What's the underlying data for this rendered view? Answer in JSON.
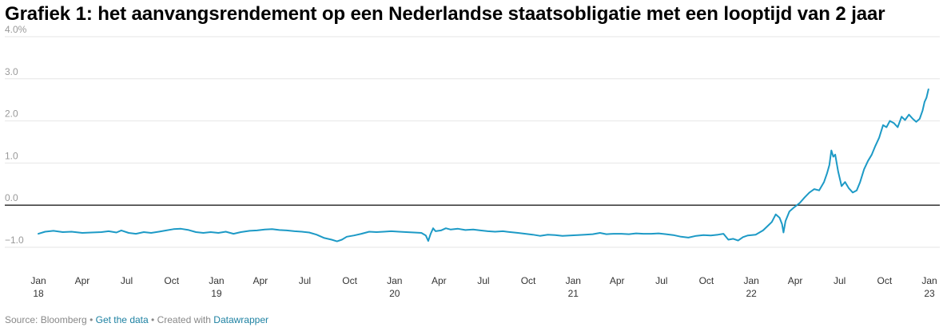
{
  "header": {
    "title": "Grafiek 1: het aanvangsrendement op een Nederlandse staatsobligatie met een looptijd van 2 jaar"
  },
  "footer": {
    "source": "Source: Bloomberg",
    "separator": "•",
    "get_data": "Get the data",
    "created_with": "Created with",
    "tool": "Datawrapper"
  },
  "colors": {
    "line": "#1d9ac6",
    "zero_line": "#333333",
    "grid": "#e6e6e6",
    "tick_text": "#999999"
  },
  "chart_data": {
    "type": "line",
    "title": "Grafiek 1: het aanvangsrendement op een Nederlandse staatsobligatie met een looptijd van 2 jaar",
    "xlabel": "",
    "ylabel": "",
    "ylim": [
      -1.0,
      4.0
    ],
    "y_ticks": [
      {
        "value": 4.0,
        "label": "4.0%"
      },
      {
        "value": 3.0,
        "label": "3.0"
      },
      {
        "value": 2.0,
        "label": "2.0"
      },
      {
        "value": 1.0,
        "label": "1.0"
      },
      {
        "value": 0.0,
        "label": "0.0"
      },
      {
        "value": -1.0,
        "label": "−1.0"
      }
    ],
    "x_range": [
      "2018-01-01",
      "2023-01-01"
    ],
    "x_ticks": [
      {
        "date": "2018-01-01",
        "label": "Jan",
        "sublabel": "18"
      },
      {
        "date": "2018-04-01",
        "label": "Apr",
        "sublabel": ""
      },
      {
        "date": "2018-07-01",
        "label": "Jul",
        "sublabel": ""
      },
      {
        "date": "2018-10-01",
        "label": "Oct",
        "sublabel": ""
      },
      {
        "date": "2019-01-01",
        "label": "Jan",
        "sublabel": "19"
      },
      {
        "date": "2019-04-01",
        "label": "Apr",
        "sublabel": ""
      },
      {
        "date": "2019-07-01",
        "label": "Jul",
        "sublabel": ""
      },
      {
        "date": "2019-10-01",
        "label": "Oct",
        "sublabel": ""
      },
      {
        "date": "2020-01-01",
        "label": "Jan",
        "sublabel": "20"
      },
      {
        "date": "2020-04-01",
        "label": "Apr",
        "sublabel": ""
      },
      {
        "date": "2020-07-01",
        "label": "Jul",
        "sublabel": ""
      },
      {
        "date": "2020-10-01",
        "label": "Oct",
        "sublabel": ""
      },
      {
        "date": "2021-01-01",
        "label": "Jan",
        "sublabel": "21"
      },
      {
        "date": "2021-04-01",
        "label": "Apr",
        "sublabel": ""
      },
      {
        "date": "2021-07-01",
        "label": "Jul",
        "sublabel": ""
      },
      {
        "date": "2021-10-01",
        "label": "Oct",
        "sublabel": ""
      },
      {
        "date": "2022-01-01",
        "label": "Jan",
        "sublabel": "22"
      },
      {
        "date": "2022-04-01",
        "label": "Apr",
        "sublabel": ""
      },
      {
        "date": "2022-07-01",
        "label": "Jul",
        "sublabel": ""
      },
      {
        "date": "2022-10-01",
        "label": "Oct",
        "sublabel": ""
      },
      {
        "date": "2023-01-01",
        "label": "Jan",
        "sublabel": "23"
      }
    ],
    "grid": true,
    "legend": "none",
    "series": [
      {
        "points": [
          [
            "2018-01-01",
            -0.68
          ],
          [
            "2018-01-15",
            -0.63
          ],
          [
            "2018-02-01",
            -0.61
          ],
          [
            "2018-02-20",
            -0.64
          ],
          [
            "2018-03-10",
            -0.63
          ],
          [
            "2018-04-01",
            -0.66
          ],
          [
            "2018-04-20",
            -0.65
          ],
          [
            "2018-05-10",
            -0.64
          ],
          [
            "2018-05-25",
            -0.62
          ],
          [
            "2018-06-10",
            -0.65
          ],
          [
            "2018-06-20",
            -0.6
          ],
          [
            "2018-07-05",
            -0.66
          ],
          [
            "2018-07-20",
            -0.68
          ],
          [
            "2018-08-05",
            -0.64
          ],
          [
            "2018-08-20",
            -0.66
          ],
          [
            "2018-09-05",
            -0.63
          ],
          [
            "2018-09-20",
            -0.6
          ],
          [
            "2018-10-05",
            -0.57
          ],
          [
            "2018-10-20",
            -0.56
          ],
          [
            "2018-11-05",
            -0.59
          ],
          [
            "2018-11-20",
            -0.64
          ],
          [
            "2018-12-05",
            -0.66
          ],
          [
            "2018-12-20",
            -0.64
          ],
          [
            "2019-01-05",
            -0.66
          ],
          [
            "2019-01-20",
            -0.63
          ],
          [
            "2019-02-05",
            -0.68
          ],
          [
            "2019-02-20",
            -0.64
          ],
          [
            "2019-03-10",
            -0.61
          ],
          [
            "2019-03-25",
            -0.6
          ],
          [
            "2019-04-10",
            -0.58
          ],
          [
            "2019-04-25",
            -0.57
          ],
          [
            "2019-05-10",
            -0.59
          ],
          [
            "2019-05-25",
            -0.6
          ],
          [
            "2019-06-10",
            -0.62
          ],
          [
            "2019-06-25",
            -0.63
          ],
          [
            "2019-07-10",
            -0.65
          ],
          [
            "2019-07-25",
            -0.7
          ],
          [
            "2019-08-10",
            -0.78
          ],
          [
            "2019-08-25",
            -0.82
          ],
          [
            "2019-09-05",
            -0.86
          ],
          [
            "2019-09-15",
            -0.82
          ],
          [
            "2019-09-25",
            -0.75
          ],
          [
            "2019-10-10",
            -0.72
          ],
          [
            "2019-10-25",
            -0.68
          ],
          [
            "2019-11-10",
            -0.63
          ],
          [
            "2019-11-25",
            -0.64
          ],
          [
            "2019-12-10",
            -0.63
          ],
          [
            "2019-12-25",
            -0.62
          ],
          [
            "2020-01-10",
            -0.63
          ],
          [
            "2020-01-25",
            -0.64
          ],
          [
            "2020-02-10",
            -0.65
          ],
          [
            "2020-02-25",
            -0.66
          ],
          [
            "2020-03-05",
            -0.72
          ],
          [
            "2020-03-10",
            -0.85
          ],
          [
            "2020-03-15",
            -0.68
          ],
          [
            "2020-03-20",
            -0.55
          ],
          [
            "2020-03-25",
            -0.62
          ],
          [
            "2020-04-05",
            -0.6
          ],
          [
            "2020-04-15",
            -0.55
          ],
          [
            "2020-04-25",
            -0.58
          ],
          [
            "2020-05-10",
            -0.56
          ],
          [
            "2020-05-25",
            -0.59
          ],
          [
            "2020-06-10",
            -0.58
          ],
          [
            "2020-06-25",
            -0.6
          ],
          [
            "2020-07-10",
            -0.62
          ],
          [
            "2020-07-25",
            -0.63
          ],
          [
            "2020-08-10",
            -0.62
          ],
          [
            "2020-08-25",
            -0.64
          ],
          [
            "2020-09-10",
            -0.66
          ],
          [
            "2020-09-25",
            -0.68
          ],
          [
            "2020-10-10",
            -0.7
          ],
          [
            "2020-10-25",
            -0.73
          ],
          [
            "2020-11-10",
            -0.7
          ],
          [
            "2020-11-25",
            -0.71
          ],
          [
            "2020-12-10",
            -0.73
          ],
          [
            "2020-12-25",
            -0.72
          ],
          [
            "2021-01-10",
            -0.71
          ],
          [
            "2021-01-25",
            -0.7
          ],
          [
            "2021-02-10",
            -0.69
          ],
          [
            "2021-02-25",
            -0.66
          ],
          [
            "2021-03-10",
            -0.69
          ],
          [
            "2021-03-25",
            -0.68
          ],
          [
            "2021-04-10",
            -0.68
          ],
          [
            "2021-04-25",
            -0.69
          ],
          [
            "2021-05-10",
            -0.67
          ],
          [
            "2021-05-25",
            -0.68
          ],
          [
            "2021-06-10",
            -0.68
          ],
          [
            "2021-06-25",
            -0.67
          ],
          [
            "2021-07-10",
            -0.69
          ],
          [
            "2021-07-25",
            -0.71
          ],
          [
            "2021-08-10",
            -0.75
          ],
          [
            "2021-08-25",
            -0.77
          ],
          [
            "2021-09-10",
            -0.73
          ],
          [
            "2021-09-25",
            -0.71
          ],
          [
            "2021-10-10",
            -0.72
          ],
          [
            "2021-10-25",
            -0.7
          ],
          [
            "2021-11-05",
            -0.68
          ],
          [
            "2021-11-15",
            -0.82
          ],
          [
            "2021-11-25",
            -0.8
          ],
          [
            "2021-12-05",
            -0.84
          ],
          [
            "2021-12-15",
            -0.76
          ],
          [
            "2021-12-25",
            -0.72
          ],
          [
            "2022-01-10",
            -0.7
          ],
          [
            "2022-01-25",
            -0.6
          ],
          [
            "2022-02-05",
            -0.48
          ],
          [
            "2022-02-12",
            -0.4
          ],
          [
            "2022-02-20",
            -0.22
          ],
          [
            "2022-02-28",
            -0.3
          ],
          [
            "2022-03-05",
            -0.45
          ],
          [
            "2022-03-08",
            -0.65
          ],
          [
            "2022-03-12",
            -0.38
          ],
          [
            "2022-03-20",
            -0.15
          ],
          [
            "2022-03-30",
            -0.05
          ],
          [
            "2022-04-10",
            0.05
          ],
          [
            "2022-04-20",
            0.18
          ],
          [
            "2022-04-30",
            0.3
          ],
          [
            "2022-05-10",
            0.38
          ],
          [
            "2022-05-20",
            0.35
          ],
          [
            "2022-05-30",
            0.55
          ],
          [
            "2022-06-05",
            0.75
          ],
          [
            "2022-06-10",
            0.95
          ],
          [
            "2022-06-14",
            1.3
          ],
          [
            "2022-06-18",
            1.15
          ],
          [
            "2022-06-22",
            1.2
          ],
          [
            "2022-06-28",
            0.8
          ],
          [
            "2022-07-05",
            0.45
          ],
          [
            "2022-07-12",
            0.55
          ],
          [
            "2022-07-20",
            0.4
          ],
          [
            "2022-07-28",
            0.3
          ],
          [
            "2022-08-05",
            0.35
          ],
          [
            "2022-08-12",
            0.55
          ],
          [
            "2022-08-20",
            0.85
          ],
          [
            "2022-08-28",
            1.05
          ],
          [
            "2022-09-05",
            1.2
          ],
          [
            "2022-09-12",
            1.4
          ],
          [
            "2022-09-20",
            1.6
          ],
          [
            "2022-09-28",
            1.9
          ],
          [
            "2022-10-05",
            1.85
          ],
          [
            "2022-10-12",
            2.0
          ],
          [
            "2022-10-20",
            1.95
          ],
          [
            "2022-10-28",
            1.85
          ],
          [
            "2022-11-05",
            2.1
          ],
          [
            "2022-11-12",
            2.02
          ],
          [
            "2022-11-20",
            2.15
          ],
          [
            "2022-11-28",
            2.05
          ],
          [
            "2022-12-05",
            1.98
          ],
          [
            "2022-12-12",
            2.05
          ],
          [
            "2022-12-18",
            2.25
          ],
          [
            "2022-12-22",
            2.45
          ],
          [
            "2022-12-26",
            2.55
          ],
          [
            "2022-12-30",
            2.75
          ]
        ]
      }
    ]
  }
}
